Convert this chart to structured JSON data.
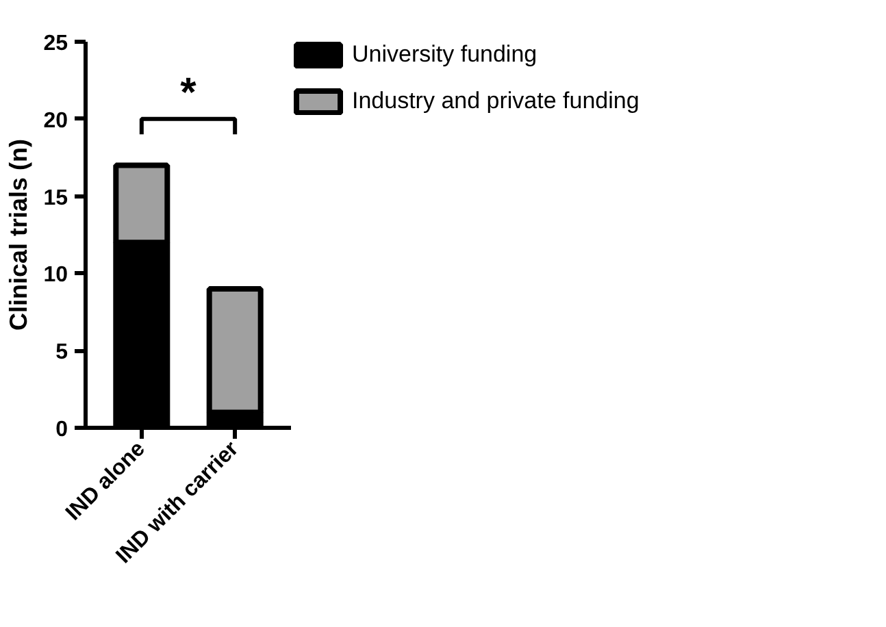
{
  "chart_data": {
    "type": "bar",
    "stacked": true,
    "ylabel": "Clinical trials (n)",
    "categories": [
      "IND alone",
      "IND with carrier"
    ],
    "series": [
      {
        "name": "University funding",
        "color": "#000000",
        "values": [
          12,
          1
        ]
      },
      {
        "name": "Industry and private funding",
        "color": "#a0a0a0",
        "values": [
          5,
          8
        ]
      }
    ],
    "ylim": [
      0,
      25
    ],
    "yticks": [
      0,
      5,
      10,
      15,
      20,
      25
    ],
    "grid": false,
    "legend": "right",
    "annotations": [
      "*"
    ]
  }
}
